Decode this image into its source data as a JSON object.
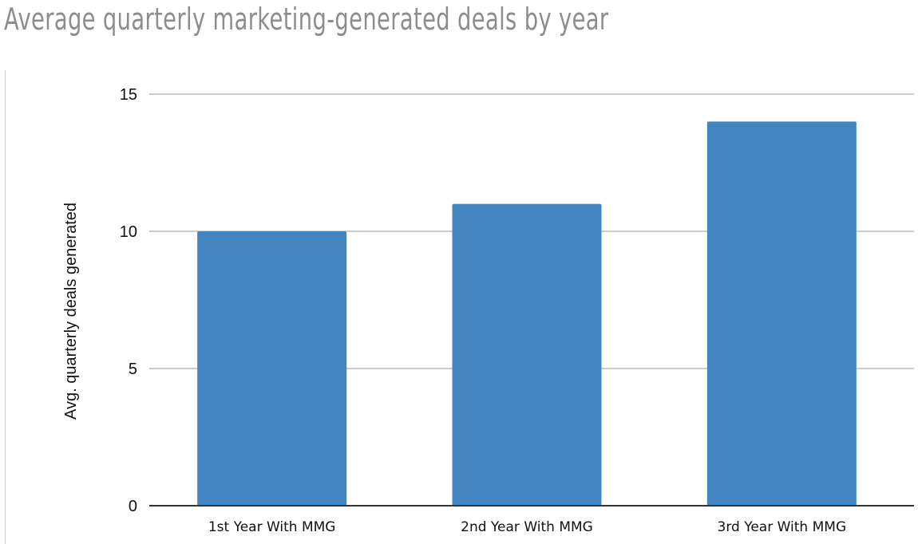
{
  "chart_data": {
    "type": "bar",
    "title": "Average quarterly marketing-generated deals by year",
    "xlabel": "",
    "ylabel": "Avg. quarterly deals generated",
    "categories": [
      "1st Year With MMG",
      "2nd Year With MMG",
      "3rd Year With MMG"
    ],
    "values": [
      10,
      11,
      14
    ],
    "ylim": [
      0,
      15
    ],
    "yticks": [
      "0",
      "5",
      "10",
      "15"
    ],
    "grid": true,
    "legend": "none",
    "colors": {
      "bar": "#4285c0",
      "grid": "#cccccc",
      "axis": "#333333",
      "title": "#8d8d8d"
    }
  }
}
